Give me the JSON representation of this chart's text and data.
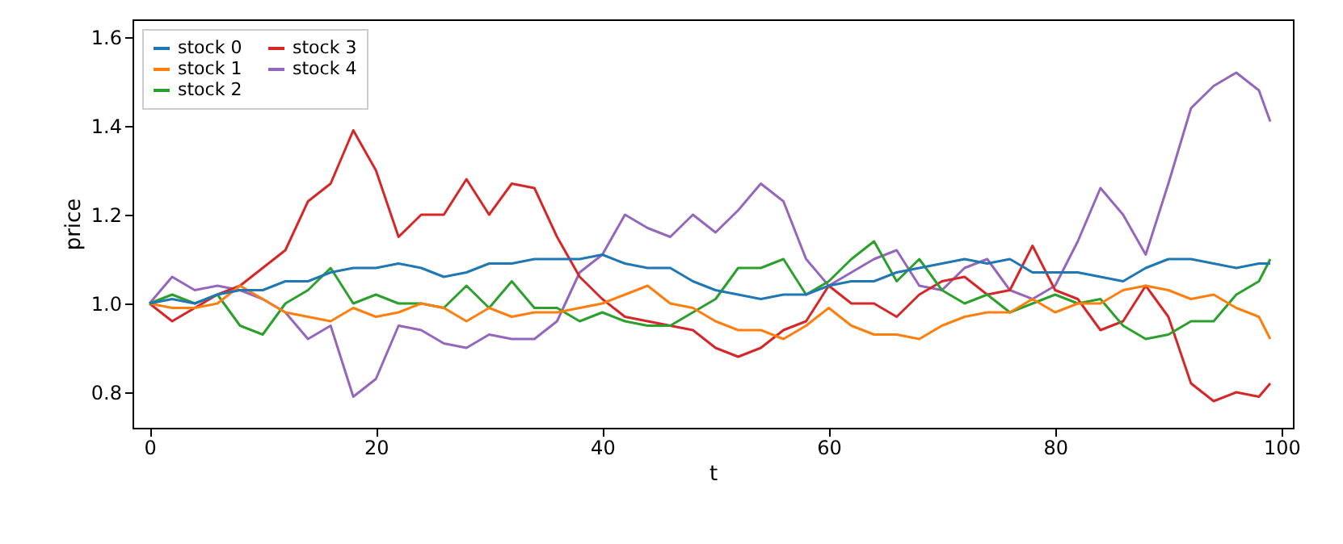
{
  "chart_data": {
    "type": "line",
    "xlabel": "t",
    "ylabel": "price",
    "x": [
      0,
      2,
      4,
      6,
      8,
      10,
      12,
      14,
      16,
      18,
      20,
      22,
      24,
      26,
      28,
      30,
      32,
      34,
      36,
      38,
      40,
      42,
      44,
      46,
      48,
      50,
      52,
      54,
      56,
      58,
      60,
      62,
      64,
      66,
      68,
      70,
      72,
      74,
      76,
      78,
      80,
      82,
      84,
      86,
      88,
      90,
      92,
      94,
      96,
      98,
      99
    ],
    "series": [
      {
        "name": "stock 0",
        "color": "#1f77b4",
        "values": [
          1.0,
          1.01,
          1.0,
          1.02,
          1.03,
          1.03,
          1.05,
          1.05,
          1.07,
          1.08,
          1.08,
          1.09,
          1.08,
          1.06,
          1.07,
          1.09,
          1.09,
          1.1,
          1.1,
          1.1,
          1.11,
          1.09,
          1.08,
          1.08,
          1.05,
          1.03,
          1.02,
          1.01,
          1.02,
          1.02,
          1.04,
          1.05,
          1.05,
          1.07,
          1.08,
          1.09,
          1.1,
          1.09,
          1.1,
          1.07,
          1.07,
          1.07,
          1.06,
          1.05,
          1.08,
          1.1,
          1.1,
          1.09,
          1.08,
          1.09,
          1.09
        ]
      },
      {
        "name": "stock 1",
        "color": "#ff7f0e",
        "values": [
          1.0,
          0.99,
          0.99,
          1.0,
          1.04,
          1.01,
          0.98,
          0.97,
          0.96,
          0.99,
          0.97,
          0.98,
          1.0,
          0.99,
          0.96,
          0.99,
          0.97,
          0.98,
          0.98,
          0.99,
          1.0,
          1.02,
          1.04,
          1.0,
          0.99,
          0.96,
          0.94,
          0.94,
          0.92,
          0.95,
          0.99,
          0.95,
          0.93,
          0.93,
          0.92,
          0.95,
          0.97,
          0.98,
          0.98,
          1.01,
          0.98,
          1.0,
          1.0,
          1.03,
          1.04,
          1.03,
          1.01,
          1.02,
          0.99,
          0.97,
          0.92
        ]
      },
      {
        "name": "stock 2",
        "color": "#2ca02c",
        "values": [
          1.0,
          1.02,
          1.0,
          1.02,
          0.95,
          0.93,
          1.0,
          1.03,
          1.08,
          1.0,
          1.02,
          1.0,
          1.0,
          0.99,
          1.04,
          0.99,
          1.05,
          0.99,
          0.99,
          0.96,
          0.98,
          0.96,
          0.95,
          0.95,
          0.98,
          1.01,
          1.08,
          1.08,
          1.1,
          1.02,
          1.05,
          1.1,
          1.14,
          1.05,
          1.1,
          1.03,
          1.0,
          1.02,
          0.98,
          1.0,
          1.02,
          1.0,
          1.01,
          0.95,
          0.92,
          0.93,
          0.96,
          0.96,
          1.02,
          1.05,
          1.1
        ]
      },
      {
        "name": "stock 3",
        "color": "#d62728",
        "values": [
          1.0,
          0.96,
          0.99,
          1.02,
          1.04,
          1.08,
          1.12,
          1.23,
          1.27,
          1.39,
          1.3,
          1.15,
          1.2,
          1.2,
          1.28,
          1.2,
          1.27,
          1.26,
          1.15,
          1.06,
          1.01,
          0.97,
          0.96,
          0.95,
          0.94,
          0.9,
          0.88,
          0.9,
          0.94,
          0.96,
          1.04,
          1.0,
          1.0,
          0.97,
          1.02,
          1.05,
          1.06,
          1.02,
          1.03,
          1.13,
          1.03,
          1.01,
          0.94,
          0.96,
          1.04,
          0.97,
          0.82,
          0.78,
          0.8,
          0.79,
          0.82
        ]
      },
      {
        "name": "stock 4",
        "color": "#9467bd",
        "values": [
          1.0,
          1.06,
          1.03,
          1.04,
          1.03,
          1.01,
          0.98,
          0.92,
          0.95,
          0.79,
          0.83,
          0.95,
          0.94,
          0.91,
          0.9,
          0.93,
          0.92,
          0.92,
          0.96,
          1.07,
          1.11,
          1.2,
          1.17,
          1.15,
          1.2,
          1.16,
          1.21,
          1.27,
          1.23,
          1.1,
          1.04,
          1.07,
          1.1,
          1.12,
          1.04,
          1.03,
          1.08,
          1.1,
          1.03,
          1.01,
          1.04,
          1.14,
          1.26,
          1.2,
          1.11,
          1.27,
          1.44,
          1.49,
          1.52,
          1.48,
          1.41
        ]
      }
    ],
    "xlim": [
      -1.5,
      101
    ],
    "xticks": [
      0,
      20,
      40,
      60,
      80,
      100
    ],
    "ylim": [
      0.72,
      1.64
    ],
    "yticks": [
      0.8,
      {
        "value": 1.0,
        "label": "1.0"
      },
      1.2,
      1.4,
      1.6
    ],
    "legend": "top left",
    "grid": false,
    "marker": "none",
    "line_style": "solid"
  }
}
